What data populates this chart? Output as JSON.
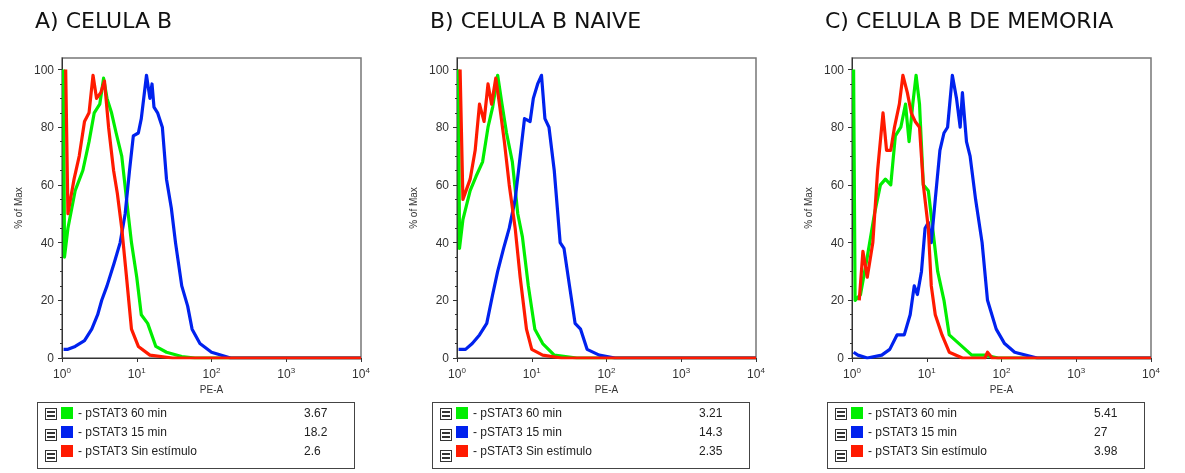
{
  "chart_data": [
    {
      "type": "line",
      "title": "A) CELULA B",
      "xlabel": "PE-A",
      "ylabel": "% of Max",
      "log": "x",
      "grid": false,
      "legend": "bottom",
      "marker": "none",
      "xlim": [
        1,
        10000
      ],
      "xticks": [
        {
          "value": 1,
          "label": "10$^{0}$"
        },
        {
          "value": 10,
          "label": "10$^{1}$"
        },
        {
          "value": 100,
          "label": "10$^{2}$"
        },
        {
          "value": 1000,
          "label": "10$^{3}$"
        },
        {
          "value": 10000,
          "label": "10$^{4}$"
        }
      ],
      "ylim": [
        0,
        104
      ],
      "yticks": [
        0,
        20,
        40,
        60,
        80,
        100
      ],
      "annotations": [
        "3.67",
        "18.2",
        "2.6"
      ],
      "series": [
        {
          "name": "- pSTAT3 60 min",
          "color": "#00ee00",
          "x": [
            1.05,
            1.08,
            1.2,
            1.5,
            1.9,
            2.3,
            2.7,
            3.2,
            3.6,
            4.0,
            4.6,
            5.3,
            6.3,
            7.3,
            8.5,
            10,
            11.5,
            14,
            18,
            25,
            40,
            60,
            10000
          ],
          "values": [
            100,
            35,
            45,
            58,
            65,
            75,
            85,
            88,
            97,
            90,
            85,
            78,
            70,
            55,
            40,
            28,
            15,
            12,
            4,
            2,
            0.5,
            0,
            0
          ]
        },
        {
          "name": "- pSTAT3 15 min",
          "color": "#0022ee",
          "x": [
            1.05,
            1.2,
            1.5,
            2.0,
            2.5,
            3,
            3.4,
            4,
            5,
            6,
            7,
            8,
            9,
            10.5,
            11.5,
            13.5,
            15,
            16,
            17,
            19,
            22,
            25,
            29,
            33,
            40,
            48,
            55,
            70,
            100,
            180,
            10000
          ],
          "values": [
            3,
            3,
            4,
            6,
            10,
            15,
            20,
            25,
            33,
            40,
            50,
            65,
            77,
            78,
            83,
            98,
            90,
            95,
            87,
            85,
            80,
            62,
            52,
            40,
            25,
            18,
            10,
            5,
            2,
            0,
            0
          ]
        },
        {
          "name": "- pSTAT3 Sin estímulo",
          "color": "#ff1a00",
          "x": [
            1.12,
            1.2,
            1.45,
            1.7,
            2.0,
            2.3,
            2.6,
            2.9,
            3.3,
            3.7,
            4.2,
            4.9,
            5.5,
            6.3,
            7.3,
            8.5,
            10.5,
            15,
            30,
            10000
          ],
          "values": [
            100,
            50,
            62,
            70,
            82,
            85,
            98,
            90,
            92,
            96,
            80,
            65,
            57,
            45,
            28,
            10,
            4,
            1,
            0,
            0
          ]
        }
      ]
    },
    {
      "type": "line",
      "title": "B) CELULA B NAIVE",
      "xlabel": "PE-A",
      "ylabel": "% of Max",
      "log": "x",
      "grid": false,
      "legend": "bottom",
      "marker": "none",
      "xlim": [
        1,
        10000
      ],
      "xticks": [
        {
          "value": 1,
          "label": "10$^{0}$"
        },
        {
          "value": 10,
          "label": "10$^{1}$"
        },
        {
          "value": 100,
          "label": "10$^{2}$"
        },
        {
          "value": 1000,
          "label": "10$^{3}$"
        },
        {
          "value": 10000,
          "label": "10$^{4}$"
        }
      ],
      "ylim": [
        0,
        104
      ],
      "yticks": [
        0,
        20,
        40,
        60,
        80,
        100
      ],
      "annotations": [
        "3.21",
        "14.3",
        "2.35"
      ],
      "series": [
        {
          "name": "- pSTAT3 60 min",
          "color": "#00ee00",
          "x": [
            1.05,
            1.08,
            1.2,
            1.5,
            1.8,
            2.2,
            2.6,
            3,
            3.5,
            4,
            4.6,
            5.5,
            6.5,
            7.5,
            9,
            11,
            14,
            20,
            40,
            10000
          ],
          "values": [
            100,
            38,
            48,
            58,
            63,
            68,
            80,
            87,
            98,
            88,
            78,
            68,
            50,
            42,
            25,
            10,
            5,
            1,
            0,
            0
          ]
        },
        {
          "name": "- pSTAT3 15 min",
          "color": "#0022ee",
          "x": [
            1.05,
            1.3,
            1.6,
            2.0,
            2.5,
            3.0,
            3.5,
            4.2,
            5,
            6,
            7,
            8,
            9.5,
            10.5,
            12,
            13.5,
            15,
            17,
            20,
            24,
            27,
            32,
            38,
            45,
            55,
            80,
            130,
            10000
          ],
          "values": [
            3,
            3,
            5,
            8,
            12,
            22,
            30,
            38,
            45,
            55,
            70,
            83,
            82,
            90,
            95,
            98,
            83,
            80,
            65,
            40,
            38,
            25,
            12,
            10,
            3,
            1,
            0,
            0
          ]
        },
        {
          "name": "- pSTAT3 Sin estímulo",
          "color": "#ff1a00",
          "x": [
            1.1,
            1.2,
            1.5,
            1.75,
            2.0,
            2.3,
            2.6,
            2.9,
            3.3,
            3.7,
            4.3,
            5,
            6,
            7,
            8.5,
            10,
            14,
            25,
            10000
          ],
          "values": [
            100,
            55,
            62,
            72,
            88,
            82,
            95,
            88,
            97,
            88,
            75,
            60,
            45,
            28,
            10,
            3,
            1,
            0,
            0
          ]
        }
      ]
    },
    {
      "type": "line",
      "title": "C) CELULA B DE MEMORIA",
      "xlabel": "PE-A",
      "ylabel": "% of Max",
      "log": "x",
      "grid": false,
      "legend": "bottom",
      "marker": "none",
      "xlim": [
        1,
        10000
      ],
      "xticks": [
        {
          "value": 1,
          "label": "10$^{0}$"
        },
        {
          "value": 10,
          "label": "10$^{1}$"
        },
        {
          "value": 100,
          "label": "10$^{2}$"
        },
        {
          "value": 1000,
          "label": "10$^{3}$"
        },
        {
          "value": 10000,
          "label": "10$^{4}$"
        }
      ],
      "ylim": [
        0,
        104
      ],
      "yticks": [
        0,
        20,
        40,
        60,
        80,
        100
      ],
      "annotations": [
        "5.41",
        "27",
        "3.98"
      ],
      "series": [
        {
          "name": "- pSTAT3 60 min",
          "color": "#00ee00",
          "x": [
            1.05,
            1.1,
            1.3,
            1.6,
            2.0,
            2.4,
            2.8,
            3.3,
            3.8,
            4.5,
            5.2,
            5.8,
            6.5,
            7.2,
            8,
            9,
            10.5,
            12,
            14,
            17,
            20,
            27,
            40,
            60,
            90,
            10000
          ],
          "values": [
            100,
            20,
            22,
            35,
            50,
            60,
            62,
            60,
            77,
            80,
            88,
            75,
            88,
            98,
            88,
            60,
            58,
            45,
            30,
            20,
            8,
            5,
            1,
            1,
            0,
            0
          ]
        },
        {
          "name": "- pSTAT3 15 min",
          "color": "#0022ee",
          "x": [
            1.05,
            1.2,
            1.6,
            2.5,
            3.2,
            4,
            5,
            6,
            6.8,
            7.5,
            8.5,
            9.5,
            10.5,
            11.5,
            13,
            15,
            17,
            19,
            22,
            25,
            28,
            30,
            34,
            38,
            45,
            55,
            65,
            85,
            110,
            150,
            300,
            10000
          ],
          "values": [
            2,
            1,
            0,
            1,
            3,
            8,
            8,
            15,
            25,
            22,
            30,
            45,
            47,
            40,
            55,
            72,
            78,
            80,
            98,
            90,
            80,
            92,
            75,
            70,
            55,
            40,
            20,
            10,
            5,
            2,
            0,
            0
          ]
        },
        {
          "name": "- pSTAT3 Sin estímulo",
          "color": "#ff1a00",
          "x": [
            1.25,
            1.4,
            1.6,
            1.9,
            2.2,
            2.6,
            2.9,
            3.3,
            3.7,
            4.3,
            4.8,
            5.5,
            6.2,
            7,
            8,
            9,
            10.5,
            11.5,
            13,
            16,
            20,
            30,
            60,
            65,
            75,
            10000
          ],
          "values": [
            20,
            37,
            28,
            40,
            65,
            85,
            72,
            72,
            80,
            88,
            98,
            92,
            85,
            82,
            80,
            60,
            45,
            25,
            15,
            8,
            2,
            0,
            0,
            2,
            0,
            0
          ]
        }
      ]
    }
  ]
}
